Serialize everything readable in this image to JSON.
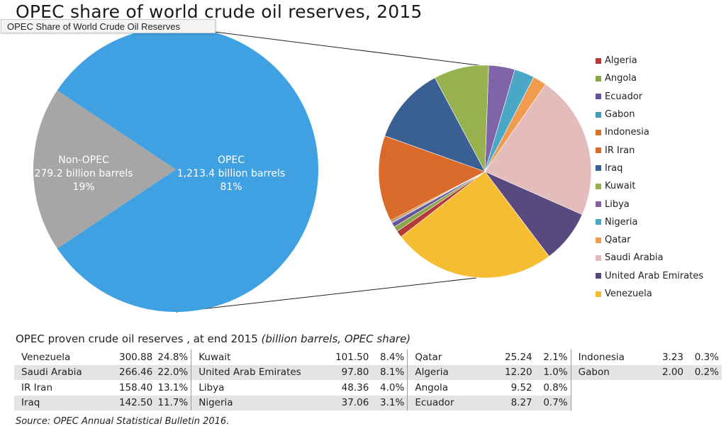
{
  "title": "OPEC share of world crude oil reserves, 2015",
  "tooltip": "OPEC Share of World Crude Oil Reserves",
  "chart_data": [
    {
      "type": "pie",
      "slices": [
        {
          "name": "OPEC",
          "value_label": "1,213.4 billion barrels",
          "pct_label": "81%",
          "value": 1213.4,
          "color": "#3fa1e1"
        },
        {
          "name": "Non-OPEC",
          "value_label": "279.2 billion barrels",
          "pct_label": "19%",
          "value": 279.2,
          "color": "#a6a6a6"
        }
      ]
    },
    {
      "type": "pie",
      "slices": [
        {
          "name": "Algeria",
          "value": 12.2,
          "color": "#b33a36"
        },
        {
          "name": "Angola",
          "value": 9.52,
          "color": "#8aa64a"
        },
        {
          "name": "Ecuador",
          "value": 8.27,
          "color": "#6a5299"
        },
        {
          "name": "Gabon",
          "value": 2.0,
          "color": "#3e9fb8"
        },
        {
          "name": "Indonesia",
          "value": 3.23,
          "color": "#d8752c"
        },
        {
          "name": "IR Iran",
          "value": 158.4,
          "color": "#da6a2a"
        },
        {
          "name": "Iraq",
          "value": 142.5,
          "color": "#3a5f93"
        },
        {
          "name": "Kuwait",
          "value": 101.5,
          "color": "#97b14f"
        },
        {
          "name": "Libya",
          "value": 48.36,
          "color": "#7f64aa"
        },
        {
          "name": "Nigeria",
          "value": 37.06,
          "color": "#4aa8c6"
        },
        {
          "name": "Qatar",
          "value": 25.24,
          "color": "#f09b4e"
        },
        {
          "name": "Saudi Arabia",
          "value": 266.46,
          "color": "#e4bcbc"
        },
        {
          "name": "United Arab Emirates",
          "value": 97.8,
          "color": "#584a7e"
        },
        {
          "name": "Venezuela",
          "value": 300.88,
          "color": "#f6bd33"
        }
      ]
    }
  ],
  "legend": [
    {
      "label": "Algeria",
      "color": "#b33a36"
    },
    {
      "label": "Angola",
      "color": "#8aa64a"
    },
    {
      "label": "Ecuador",
      "color": "#6a5299"
    },
    {
      "label": "Gabon",
      "color": "#3e9fb8"
    },
    {
      "label": "Indonesia",
      "color": "#d8752c"
    },
    {
      "label": "IR Iran",
      "color": "#da6a2a"
    },
    {
      "label": "Iraq",
      "color": "#3a5f93"
    },
    {
      "label": "Kuwait",
      "color": "#97b14f"
    },
    {
      "label": "Libya",
      "color": "#7f64aa"
    },
    {
      "label": "Nigeria",
      "color": "#4aa8c6"
    },
    {
      "label": "Qatar",
      "color": "#f09b4e"
    },
    {
      "label": "Saudi Arabia",
      "color": "#e4bcbc"
    },
    {
      "label": "United Arab Emirates",
      "color": "#584a7e"
    },
    {
      "label": "Venezuela",
      "color": "#f6bd33"
    }
  ],
  "table": {
    "title": "OPEC proven crude oil reserves , at end 2015",
    "unit": "(billion barrels, OPEC share)",
    "columns": [
      [
        {
          "country": "Venezuela",
          "value": "300.88",
          "share": "24.8%"
        },
        {
          "country": "Saudi Arabia",
          "value": "266.46",
          "share": "22.0%"
        },
        {
          "country": "IR Iran",
          "value": "158.40",
          "share": "13.1%"
        },
        {
          "country": "Iraq",
          "value": "142.50",
          "share": "11.7%"
        }
      ],
      [
        {
          "country": "Kuwait",
          "value": "101.50",
          "share": "8.4%"
        },
        {
          "country": "United Arab Emirates",
          "value": "97.80",
          "share": "8.1%"
        },
        {
          "country": "Libya",
          "value": "48.36",
          "share": "4.0%"
        },
        {
          "country": "Nigeria",
          "value": "37.06",
          "share": "3.1%"
        }
      ],
      [
        {
          "country": "Qatar",
          "value": "25.24",
          "share": "2.1%"
        },
        {
          "country": "Algeria",
          "value": "12.20",
          "share": "1.0%"
        },
        {
          "country": "Angola",
          "value": "9.52",
          "share": "0.8%"
        },
        {
          "country": "Ecuador",
          "value": "8.27",
          "share": "0.7%"
        }
      ],
      [
        {
          "country": "Indonesia",
          "value": "3.23",
          "share": "0.3%"
        },
        {
          "country": "Gabon",
          "value": "2.00",
          "share": "0.2%"
        }
      ]
    ]
  },
  "source": "Source: OPEC Annual Statistical Bulletin 2016."
}
